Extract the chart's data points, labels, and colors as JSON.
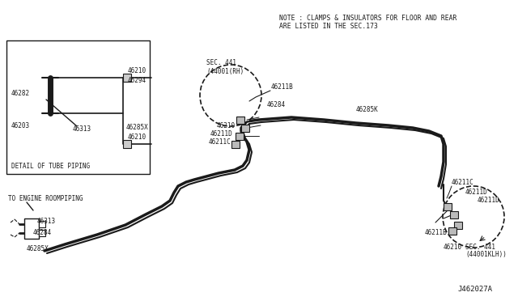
{
  "bg_color": "#ffffff",
  "line_color": "#1a1a1a",
  "text_color": "#1a1a1a",
  "footer_code": "J462027A",
  "note_line1": "NOTE : CLAMPS & INSULATORS FOR FLOOR AND REAR",
  "note_line2": "ARE LISTED IN THE SEC.173",
  "detail_label": "DETAIL OF TUBE PIPING",
  "engine_label": "TO ENGINE ROOMPIPING",
  "figw": 6.4,
  "figh": 3.72,
  "dpi": 100
}
